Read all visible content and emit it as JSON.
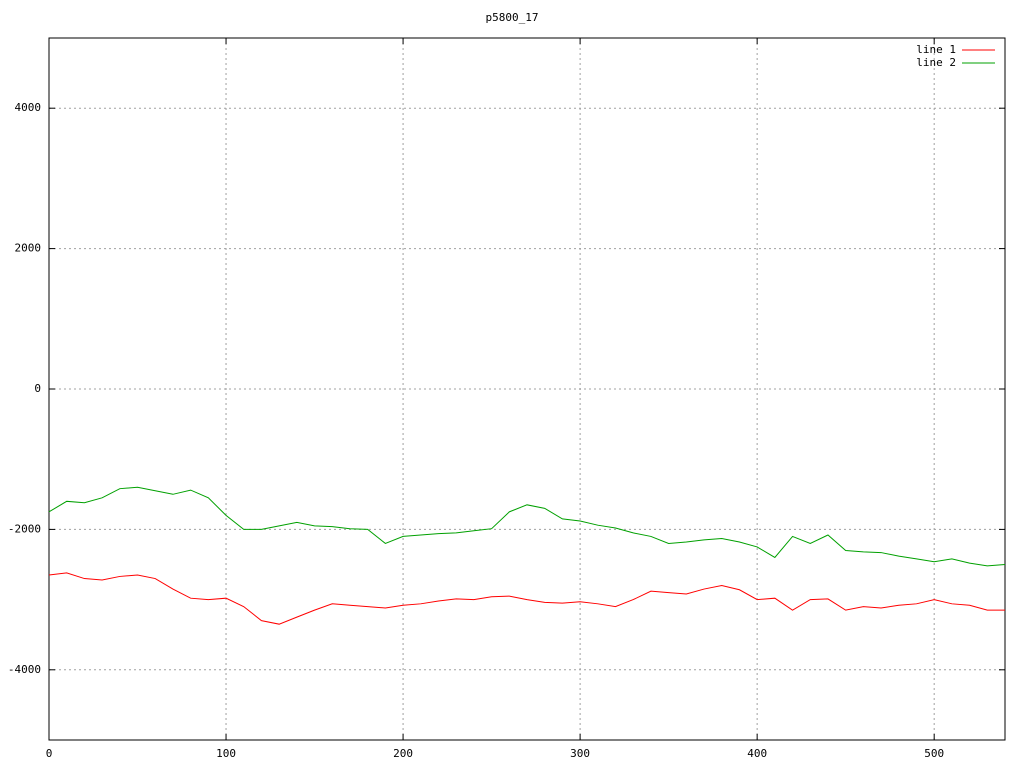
{
  "chart_data": {
    "type": "line",
    "title": "p5800_17",
    "x": [
      0,
      10,
      20,
      30,
      40,
      50,
      60,
      70,
      80,
      90,
      100,
      110,
      120,
      130,
      140,
      150,
      160,
      170,
      180,
      190,
      200,
      210,
      220,
      230,
      240,
      250,
      260,
      270,
      280,
      290,
      300,
      310,
      320,
      330,
      340,
      350,
      360,
      370,
      380,
      390,
      400,
      410,
      420,
      430,
      440,
      450,
      460,
      470,
      480,
      490,
      500,
      510,
      520,
      530,
      540
    ],
    "series": [
      {
        "name": "line 1",
        "color": "#ff0000",
        "values": [
          -2650,
          -2620,
          -2700,
          -2720,
          -2670,
          -2650,
          -2700,
          -2850,
          -2980,
          -3000,
          -2980,
          -3100,
          -3300,
          -3350,
          -3250,
          -3150,
          -3060,
          -3080,
          -3100,
          -3120,
          -3080,
          -3060,
          -3020,
          -2990,
          -3000,
          -2960,
          -2950,
          -3000,
          -3040,
          -3050,
          -3030,
          -3060,
          -3100,
          -3000,
          -2880,
          -2900,
          -2920,
          -2850,
          -2800,
          -2860,
          -3000,
          -2980,
          -3150,
          -3000,
          -2990,
          -3150,
          -3100,
          -3120,
          -3080,
          -3060,
          -3000,
          -3060,
          -3080,
          -3150,
          -3150
        ]
      },
      {
        "name": "line 2",
        "color": "#00a000",
        "values": [
          -1750,
          -1600,
          -1620,
          -1550,
          -1420,
          -1400,
          -1450,
          -1500,
          -1440,
          -1550,
          -1800,
          -2000,
          -2000,
          -1950,
          -1900,
          -1950,
          -1960,
          -1990,
          -2000,
          -2200,
          -2100,
          -2080,
          -2060,
          -2050,
          -2020,
          -1990,
          -1750,
          -1650,
          -1700,
          -1850,
          -1880,
          -1940,
          -1980,
          -2050,
          -2100,
          -2200,
          -2180,
          -2150,
          -2130,
          -2180,
          -2250,
          -2400,
          -2100,
          -2200,
          -2080,
          -2300,
          -2320,
          -2330,
          -2380,
          -2420,
          -2460,
          -2420,
          -2480,
          -2520,
          -2500
        ]
      }
    ],
    "xlim": [
      0,
      540
    ],
    "ylim": [
      -5000,
      5000
    ],
    "xticks": [
      0,
      100,
      200,
      300,
      400,
      500
    ],
    "yticks": [
      -4000,
      -2000,
      0,
      2000,
      4000
    ],
    "grid": true,
    "legend": "top-right"
  }
}
